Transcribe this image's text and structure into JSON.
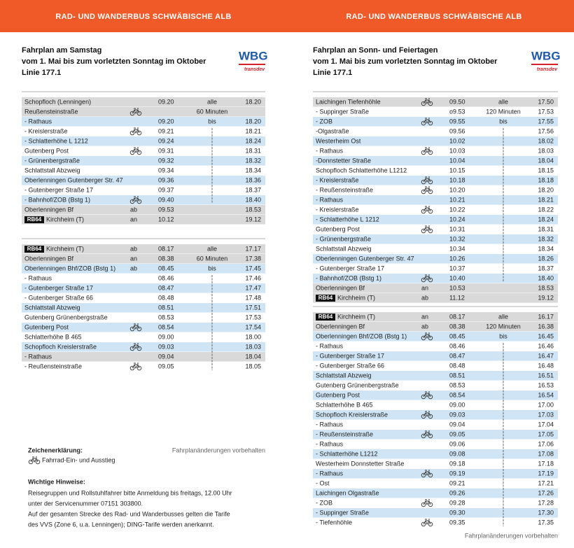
{
  "pages": [
    {
      "banner": "RAD- UND WANDERBUS SCHWÄBISCHE ALB",
      "heading": [
        "Fahrplan am Samstag",
        "vom 1. Mai bis zum vorletzten Sonntag im Oktober",
        "Linie 177.1"
      ],
      "logo": {
        "brand": "WBG",
        "sub": "transdev"
      },
      "tables": [
        {
          "rows": [
            {
              "stop": "Schopfloch (Lenningen)",
              "first": "09.20",
              "note": "alle",
              "last": "18.20",
              "shade": "gray"
            },
            {
              "stop": "Reußensteinstraße",
              "bike": true,
              "note": "60 Minuten",
              "shade": "gray"
            },
            {
              "stop": "- Rathaus",
              "first": "09.20",
              "note": "bis",
              "last": "18.20",
              "shade": "blue"
            },
            {
              "stop": "- Kreislerstraße",
              "bike": true,
              "first": "09.21",
              "last": "18.21",
              "shade": "white"
            },
            {
              "stop": "- Schlatterhöhe L 1212",
              "first": "09.24",
              "last": "18.24",
              "shade": "blue"
            },
            {
              "stop": "Gutenberg Post",
              "bike": true,
              "first": "09.31",
              "last": "18.31",
              "shade": "white"
            },
            {
              "stop": "- Grünenbergstraße",
              "first": "09.32",
              "last": "18.32",
              "shade": "blue"
            },
            {
              "stop": "Schlattstall Abzweig",
              "first": "09.34",
              "last": "18.34",
              "shade": "white"
            },
            {
              "stop": "Oberlenningen Gutenberger Str. 47",
              "first": "09.36",
              "last": "18.36",
              "shade": "blue"
            },
            {
              "stop": "- Gutenberger Straße 17",
              "first": "09.37",
              "last": "18.37",
              "shade": "white"
            },
            {
              "stop": "- Bahnhof/ZOB (Bstg 1)",
              "bike": true,
              "first": "09.40",
              "last": "18.40",
              "shade": "blue"
            },
            {
              "stop": "Oberlenningen Bf",
              "mode": "ab",
              "first": "09.53",
              "last": "18.53",
              "shade": "gray"
            },
            {
              "badge": "RB64",
              "stop": "Kirchheim (T)",
              "mode": "an",
              "first": "10.12",
              "last": "19.12",
              "shade": "gray"
            }
          ]
        },
        {
          "rows": [
            {
              "badge": "RB64",
              "stop": "Kirchheim (T)",
              "mode": "ab",
              "first": "08.17",
              "note": "alle",
              "last": "17.17",
              "shade": "gray"
            },
            {
              "stop": "Oberlenningen Bf",
              "mode": "an",
              "first": "08.38",
              "note": "60 Minuten",
              "last": "17.38",
              "shade": "gray"
            },
            {
              "stop": "Oberlenningen Bhf/ZOB (Bstg 1)",
              "mode": "ab",
              "first": "08.45",
              "note": "bis",
              "last": "17.45",
              "shade": "blue"
            },
            {
              "stop": "- Rathaus",
              "first": "08.46",
              "last": "17.46",
              "shade": "white"
            },
            {
              "stop": "- Gutenberger Straße 17",
              "first": "08.47",
              "last": "17.47",
              "shade": "blue"
            },
            {
              "stop": "- Gutenberger Straße 66",
              "first": "08.48",
              "last": "17.48",
              "shade": "white"
            },
            {
              "stop": "Schlattstall Abzweig",
              "first": "08.51",
              "last": "17.51",
              "shade": "blue"
            },
            {
              "stop": "Gutenberg Grünenbergstraße",
              "first": "08.53",
              "last": "17.53",
              "shade": "white"
            },
            {
              "stop": "Gutenberg Post",
              "bike": true,
              "first": "08.54",
              "last": "17.54",
              "shade": "blue"
            },
            {
              "stop": "Schlatterhöhe B 465",
              "first": "09.00",
              "last": "18.00",
              "shade": "white"
            },
            {
              "stop": "Schopfloch Kreislerstraße",
              "bike": true,
              "first": "09.03",
              "last": "18.03",
              "shade": "blue"
            },
            {
              "stop": "- Rathaus",
              "first": "09.04",
              "last": "18.04",
              "shade": "gray"
            },
            {
              "stop": "- Reußensteinstraße",
              "bike": true,
              "first": "09.05",
              "last": "18.05",
              "shade": "white"
            }
          ]
        }
      ],
      "legend": {
        "title": "Zeichenerklärung:",
        "bike": "Fahrrad-Ein- und Ausstieg",
        "disclaimer": "Fahrplanänderungen vorbehalten"
      },
      "notes": {
        "title": "Wichtige Hinweise:",
        "lines": [
          "Reisegruppen und Rollstuhlfahrer bitte Anmeldung bis freitags, 12.00 Uhr",
          "unter der Servicenummer 07151 303800.",
          "Auf der gesamten Strecke des Rad- und Wanderbusses gelten die Tarife",
          "des VVS (Zone 6, u.a. Lenningen); DING-Tarife werden anerkannt."
        ]
      }
    },
    {
      "banner": "RAD- UND WANDERBUS SCHWÄBISCHE ALB",
      "heading": [
        "Fahrplan an Sonn- und Feiertagen",
        "vom 1. Mai bis zum vorletzten Sonntag im Oktober",
        "Linie 177.1"
      ],
      "logo": {
        "brand": "WBG",
        "sub": "transdev"
      },
      "tables": [
        {
          "rows": [
            {
              "stop": "Laichingen Tiefenhöhle",
              "bike": true,
              "first": "09.50",
              "note": "alle",
              "last": "17.50",
              "shade": "gray"
            },
            {
              "stop": "- Suppinger Straße",
              "first": "o9.53",
              "note": "120 Minuten",
              "last": "17.53",
              "shade": "white"
            },
            {
              "stop": "- ZOB",
              "bike": true,
              "first": "09.55",
              "note": "bis",
              "last": "17.55",
              "shade": "blue"
            },
            {
              "stop": "-Olgastraße",
              "first": "09.56",
              "last": "17.56",
              "shade": "white"
            },
            {
              "stop": "Westerheim Ost",
              "first": "10.02",
              "last": "18.02",
              "shade": "blue"
            },
            {
              "stop": "- Rathaus",
              "bike": true,
              "first": "10.03",
              "last": "18.03",
              "shade": "white"
            },
            {
              "stop": "-Donnstetter Straße",
              "first": "10.04",
              "last": "18.04",
              "shade": "blue"
            },
            {
              "stop": "Schopfloch Schlatterhöhe L1212",
              "first": "10.15",
              "last": "18.15",
              "shade": "white"
            },
            {
              "stop": "- Kreislerstraße",
              "bike": true,
              "first": "10.18",
              "last": "18.18",
              "shade": "blue"
            },
            {
              "stop": "- Reußensteinstraße",
              "bike": true,
              "first": "10.20",
              "last": "18.20",
              "shade": "white"
            },
            {
              "stop": "- Rathaus",
              "first": "10.21",
              "last": "18.21",
              "shade": "blue"
            },
            {
              "stop": "- Kreislerstraße",
              "bike": true,
              "first": "10.22",
              "last": "18.22",
              "shade": "white"
            },
            {
              "stop": "- Schlatterhöhe L 1212",
              "first": "10.24",
              "last": "18.24",
              "shade": "blue"
            },
            {
              "stop": "Gutenberg Post",
              "bike": true,
              "first": "10.31",
              "last": "18.31",
              "shade": "white"
            },
            {
              "stop": "- Grünenbergstraße",
              "first": "10.32",
              "last": "18.32",
              "shade": "blue"
            },
            {
              "stop": "Schlattstall Abzweig",
              "first": "10.34",
              "last": "18.34",
              "shade": "white"
            },
            {
              "stop": "Oberlenningen Gutenberger Str. 47",
              "first": "10.26",
              "last": "18.26",
              "shade": "blue"
            },
            {
              "stop": "- Gutenberger Straße 17",
              "first": "10.37",
              "last": "18.37",
              "shade": "white"
            },
            {
              "stop": "- Bahnhof/ZOB (Bstg 1)",
              "bike": true,
              "first": "10.40",
              "last": "18.40",
              "shade": "blue"
            },
            {
              "stop": "Oberlenningen Bf",
              "mode": "an",
              "first": "10.53",
              "last": "18.53",
              "shade": "gray"
            },
            {
              "badge": "RB64",
              "stop": "Kirchheim (T)",
              "mode": "ab",
              "first": "11.12",
              "last": "19.12",
              "shade": "gray"
            }
          ]
        },
        {
          "rows": [
            {
              "badge": "RB64",
              "stop": "Kirchheim (T)",
              "mode": "an",
              "first": "08.17",
              "note": "alle",
              "last": "16.17",
              "shade": "gray"
            },
            {
              "stop": "Oberlenningen Bf",
              "mode": "ab",
              "first": "08.38",
              "note": "120 Minuten",
              "last": "16.38",
              "shade": "gray"
            },
            {
              "stop": "Oberlenningen Bhf/ZOB (Bstg 1)",
              "bike": true,
              "first": "08.45",
              "note": "bis",
              "last": "16.45",
              "shade": "blue"
            },
            {
              "stop": "- Rathaus",
              "first": "08.46",
              "last": "16.46",
              "shade": "white"
            },
            {
              "stop": "- Gutenberger Straße 17",
              "first": "08.47",
              "last": "16.47",
              "shade": "blue"
            },
            {
              "stop": "- Gutenberger Straße 66",
              "first": "08.48",
              "last": "16.48",
              "shade": "white"
            },
            {
              "stop": "Schlattstall Abzweig",
              "first": "08.51",
              "last": "16.51",
              "shade": "blue"
            },
            {
              "stop": "Gutenberg Grünenbergstraße",
              "first": "08.53",
              "last": "16.53",
              "shade": "white"
            },
            {
              "stop": "Gutenberg Post",
              "bike": true,
              "first": "08.54",
              "last": "16.54",
              "shade": "blue"
            },
            {
              "stop": "Schlatterhöhe B 465",
              "first": "09.00",
              "last": "17.00",
              "shade": "white"
            },
            {
              "stop": "Schopfloch Kreislerstraße",
              "bike": true,
              "first": "09.03",
              "last": "17.03",
              "shade": "blue"
            },
            {
              "stop": "- Rathaus",
              "first": "09.04",
              "last": "17.04",
              "shade": "white"
            },
            {
              "stop": "- Reußensteinstraße",
              "bike": true,
              "first": "09.05",
              "last": "17.05",
              "shade": "blue"
            },
            {
              "stop": "- Rathaus",
              "first": "09.06",
              "last": "17.06",
              "shade": "white"
            },
            {
              "stop": "- Schlatterhöhe L1212",
              "first": "09.08",
              "last": "17.08",
              "shade": "blue"
            },
            {
              "stop": "Westerheim Donnstetter Straße",
              "first": "09.18",
              "last": "17.18",
              "shade": "white"
            },
            {
              "stop": "- Rathaus",
              "bike": true,
              "first": "09.19",
              "last": "17.19",
              "shade": "blue"
            },
            {
              "stop": "- Ost",
              "first": "09.21",
              "last": "17.21",
              "shade": "white"
            },
            {
              "stop": "Laichingen Olgastraße",
              "first": "09.26",
              "last": "17.26",
              "shade": "blue"
            },
            {
              "stop": "- ZOB",
              "bike": true,
              "first": "09.28",
              "last": "17.28",
              "shade": "white"
            },
            {
              "stop": "- Suppinger Straße",
              "first": "09.30",
              "last": "17.30",
              "shade": "blue"
            },
            {
              "stop": "- Tiefenhöhle",
              "bike": true,
              "first": "09.35",
              "last": "17.35",
              "shade": "white"
            }
          ]
        }
      ],
      "footer": "Fahrplanänderungen vorbehalten"
    }
  ]
}
